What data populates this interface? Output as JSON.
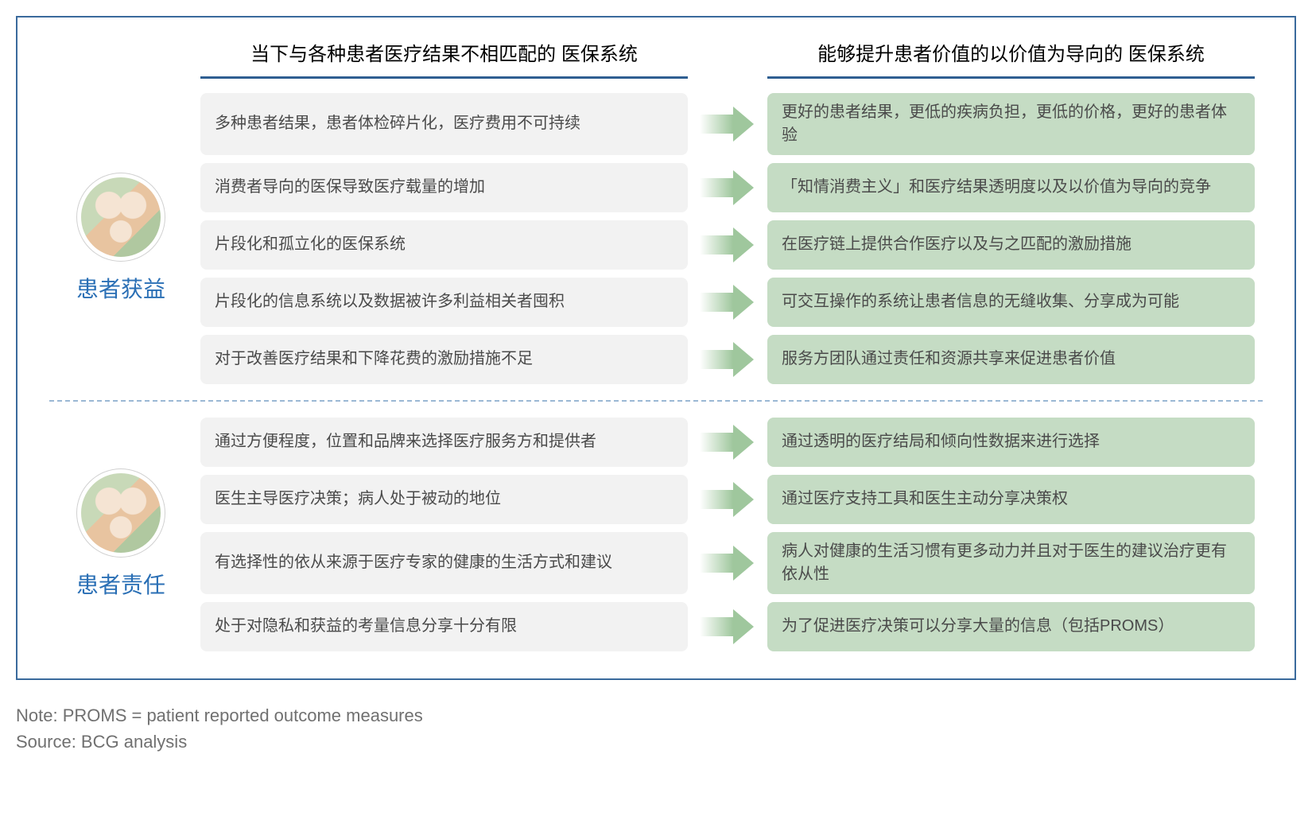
{
  "colors": {
    "frame_border": "#3a6a9c",
    "header_underline": "#2f5f92",
    "left_box_bg": "#f2f2f2",
    "right_box_bg": "#c5dcc4",
    "arrow_fill": "#9fc79d",
    "section_title_color": "#2a6fb5",
    "text_color": "#4a4a4a",
    "divider_color": "#9bb8d4",
    "footnote_color": "#707070"
  },
  "headers": {
    "left": "当下与各种患者医疗结果不相匹配的\n医保系统",
    "right": "能够提升患者价值的以价值为导向的\n医保系统"
  },
  "sections": [
    {
      "title": "患者获益",
      "rows": [
        {
          "left": "多种患者结果，患者体检碎片化，医疗费用不可持续",
          "right": "更好的患者结果，更低的疾病负担，更低的价格，更好的患者体验"
        },
        {
          "left": "消费者导向的医保导致医疗载量的增加",
          "right": "「知情消费主义」和医疗结果透明度以及以价值为导向的竞争"
        },
        {
          "left": "片段化和孤立化的医保系统",
          "right": "在医疗链上提供合作医疗以及与之匹配的激励措施"
        },
        {
          "left": "片段化的信息系统以及数据被许多利益相关者囤积",
          "right": "可交互操作的系统让患者信息的无缝收集、分享成为可能"
        },
        {
          "left": "对于改善医疗结果和下降花费的激励措施不足",
          "right": "服务方团队通过责任和资源共享来促进患者价值"
        }
      ]
    },
    {
      "title": "患者责任",
      "rows": [
        {
          "left": "通过方便程度，位置和品牌来选择医疗服务方和提供者",
          "right": "通过透明的医疗结局和倾向性数据来进行选择"
        },
        {
          "left": "医生主导医疗决策；病人处于被动的地位",
          "right": "通过医疗支持工具和医生主动分享决策权"
        },
        {
          "left": "有选择性的依从来源于医疗专家的健康的生活方式和建议",
          "right": "病人对健康的生活习惯有更多动力并且对于医生的建议治疗更有依从性"
        },
        {
          "left": "处于对隐私和获益的考量信息分享十分有限",
          "right": "为了促进医疗决策可以分享大量的信息（包括PROMS）"
        }
      ]
    }
  ],
  "footnotes": {
    "note": "Note: PROMS = patient reported outcome measures",
    "source": "Source: BCG analysis"
  }
}
